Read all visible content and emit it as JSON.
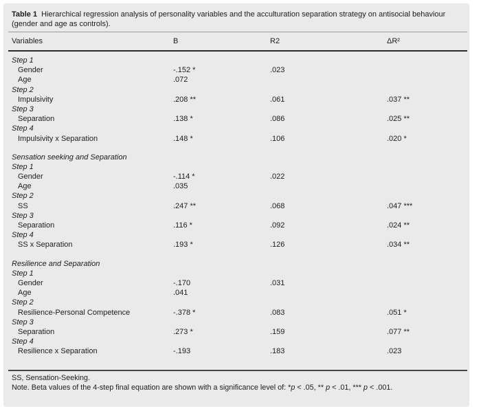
{
  "colors": {
    "panel_bg": "#eaeaea",
    "text": "#1c1c1c",
    "rule_light": "#9a9a9a",
    "rule_dark": "#2a2a2a"
  },
  "table": {
    "title_label": "Table 1",
    "title_text": "Hierarchical regression analysis of personality variables and the acculturation separation strategy on antisocial behaviour (gender and age as controls).",
    "columns": [
      "Variables",
      "B",
      "R2",
      "ΔR²"
    ],
    "rows": [
      {
        "type": "step",
        "label": "Step 1",
        "b": "",
        "r2": "",
        "dr2": ""
      },
      {
        "type": "var",
        "label": "Gender",
        "b": "-.152 *",
        "r2": ".023",
        "dr2": ""
      },
      {
        "type": "var",
        "label": "Age",
        "b": ".072",
        "r2": "",
        "dr2": ""
      },
      {
        "type": "step",
        "label": "Step 2",
        "b": "",
        "r2": "",
        "dr2": ""
      },
      {
        "type": "var",
        "label": "Impulsivity",
        "b": ".208 **",
        "r2": ".061",
        "dr2": ".037 **"
      },
      {
        "type": "step",
        "label": "Step 3",
        "b": "",
        "r2": "",
        "dr2": ""
      },
      {
        "type": "var",
        "label": "Separation",
        "b": ".138 *",
        "r2": ".086",
        "dr2": ".025 **"
      },
      {
        "type": "step",
        "label": "Step 4",
        "b": "",
        "r2": "",
        "dr2": ""
      },
      {
        "type": "var",
        "label": "Impulsivity x Separation",
        "b": ".148 *",
        "r2": ".106",
        "dr2": ".020 *"
      },
      {
        "type": "section",
        "label": "Sensation seeking and Separation",
        "b": "",
        "r2": "",
        "dr2": ""
      },
      {
        "type": "step",
        "label": "Step 1",
        "b": "",
        "r2": "",
        "dr2": ""
      },
      {
        "type": "var",
        "label": "Gender",
        "b": "-.114 *",
        "r2": ".022",
        "dr2": ""
      },
      {
        "type": "var",
        "label": "Age",
        "b": ".035",
        "r2": "",
        "dr2": ""
      },
      {
        "type": "step",
        "label": "Step 2",
        "b": "",
        "r2": "",
        "dr2": ""
      },
      {
        "type": "var",
        "label": "SS",
        "b": ".247 **",
        "r2": ".068",
        "dr2": ".047 ***"
      },
      {
        "type": "step",
        "label": "Step 3",
        "b": "",
        "r2": "",
        "dr2": ""
      },
      {
        "type": "var",
        "label": "Separation",
        "b": ".116 *",
        "r2": ".092",
        "dr2": ".024 **"
      },
      {
        "type": "step",
        "label": "Step 4",
        "b": "",
        "r2": "",
        "dr2": ""
      },
      {
        "type": "var",
        "label": "SS x Separation",
        "b": ".193 *",
        "r2": ".126",
        "dr2": ".034 **"
      },
      {
        "type": "section",
        "label": "Resilience and Separation",
        "b": "",
        "r2": "",
        "dr2": ""
      },
      {
        "type": "step",
        "label": "Step 1",
        "b": "",
        "r2": "",
        "dr2": ""
      },
      {
        "type": "var",
        "label": "Gender",
        "b": "-.170",
        "r2": ".031",
        "dr2": ""
      },
      {
        "type": "var",
        "label": "Age",
        "b": ".041",
        "r2": "",
        "dr2": ""
      },
      {
        "type": "step",
        "label": "Step 2",
        "b": "",
        "r2": "",
        "dr2": ""
      },
      {
        "type": "var",
        "label": "Resilience-Personal Competence",
        "b": "-.378 *",
        "r2": ".083",
        "dr2": ".051 *"
      },
      {
        "type": "step",
        "label": "Step 3",
        "b": "",
        "r2": "",
        "dr2": ""
      },
      {
        "type": "var",
        "label": "Separation",
        "b": ".273 *",
        "r2": ".159",
        "dr2": ".077 **"
      },
      {
        "type": "step",
        "label": "Step 4",
        "b": "",
        "r2": "",
        "dr2": ""
      },
      {
        "type": "var",
        "label": "Resilience x Separation",
        "b": "-.193",
        "r2": ".183",
        "dr2": ".023"
      }
    ]
  },
  "footnotes": {
    "abbrev": "SS, Sensation-Seeking.",
    "note_parts": [
      {
        "text": "Note. Beta values of the 4-step final equation are shown with a significance level of: *"
      },
      {
        "text": "p",
        "italic": true
      },
      {
        "text": " < .05, ** "
      },
      {
        "text": "p",
        "italic": true
      },
      {
        "text": " < .01, *** "
      },
      {
        "text": "p",
        "italic": true
      },
      {
        "text": " < .001."
      }
    ]
  }
}
